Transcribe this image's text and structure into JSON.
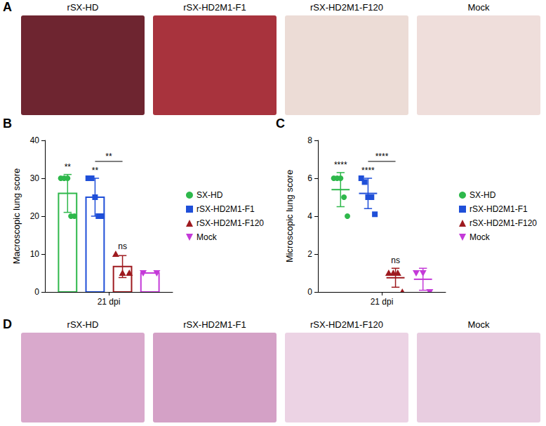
{
  "figure": {
    "photo_panels": [
      {
        "letter": "A",
        "captions": [
          "rSX-HD",
          "rSX-HD2M1-F1",
          "rSX-HD2M1-F120",
          "Mock"
        ]
      },
      {
        "letter": "D",
        "captions": [
          "rSX-HD",
          "rSX-HD2M1-F1",
          "rSX-HD2M1-F120",
          "Mock"
        ]
      }
    ],
    "chart_letters": [
      "B",
      "C"
    ]
  },
  "chart_data": [
    {
      "type": "bar",
      "categories": [
        "21 dpi"
      ],
      "y_label": "Macroscopic lung score",
      "ylim": [
        0,
        40
      ],
      "yticks": [
        0,
        10,
        20,
        30,
        40
      ],
      "grid": false,
      "legend": "right",
      "series": [
        {
          "name": "SX-HD",
          "color": "#2eb84b",
          "marker": "circle",
          "values": [
            26
          ],
          "error": [
            5.0
          ],
          "points": [
            30,
            30,
            30,
            20,
            20
          ]
        },
        {
          "name": "rSX-HD2M1-F1",
          "color": "#1f4fd8",
          "marker": "square",
          "values": [
            25
          ],
          "error": [
            5.0
          ],
          "points": [
            30,
            30,
            25,
            20,
            20
          ]
        },
        {
          "name": "rSX-HD2M1-F120",
          "color": "#9e1a1f",
          "marker": "triangle",
          "values": [
            6.7
          ],
          "error": [
            2.9
          ],
          "points": [
            10,
            5,
            5
          ]
        },
        {
          "name": "Mock",
          "color": "#c43ad8",
          "marker": "triangle-down",
          "values": [
            5
          ],
          "error": [
            0
          ],
          "points": [
            5,
            5
          ]
        }
      ],
      "annotations": [
        {
          "series": "SX-HD",
          "text": "**"
        },
        {
          "series": "rSX-HD2M1-F1",
          "text": "**"
        },
        {
          "series": "rSX-HD2M1-F120",
          "text": "ns"
        },
        {
          "from": "rSX-HD2M1-F1",
          "to": "rSX-HD2M1-F120",
          "text": "**"
        }
      ]
    },
    {
      "type": "scatter",
      "categories": [
        "21 dpi"
      ],
      "y_label": "Microscopic lung score",
      "ylim": [
        0,
        8
      ],
      "yticks": [
        0,
        2,
        4,
        6,
        8
      ],
      "grid": false,
      "legend": "right",
      "series": [
        {
          "name": "SX-HD",
          "color": "#2eb84b",
          "marker": "circle",
          "values": [
            5.4
          ],
          "error": [
            0.9
          ],
          "points": [
            6,
            6,
            6,
            5,
            4
          ]
        },
        {
          "name": "rSX-HD2M1-F1",
          "color": "#1f4fd8",
          "marker": "square",
          "values": [
            5.2
          ],
          "error": [
            0.8
          ],
          "points": [
            6,
            5.8,
            5,
            5,
            4.1
          ]
        },
        {
          "name": "rSX-HD2M1-F120",
          "color": "#9e1a1f",
          "marker": "triangle",
          "values": [
            0.75
          ],
          "error": [
            0.5
          ],
          "points": [
            1,
            1,
            1,
            0
          ]
        },
        {
          "name": "Mock",
          "color": "#c43ad8",
          "marker": "triangle-down",
          "values": [
            0.67
          ],
          "error": [
            0.58
          ],
          "points": [
            1,
            1,
            0
          ]
        }
      ],
      "annotations": [
        {
          "series": "SX-HD",
          "text": "****"
        },
        {
          "series": "rSX-HD2M1-F1",
          "text": "****"
        },
        {
          "series": "rSX-HD2M1-F120",
          "text": "ns"
        },
        {
          "from": "rSX-HD2M1-F1",
          "to": "rSX-HD2M1-F120",
          "text": "****"
        }
      ]
    }
  ]
}
